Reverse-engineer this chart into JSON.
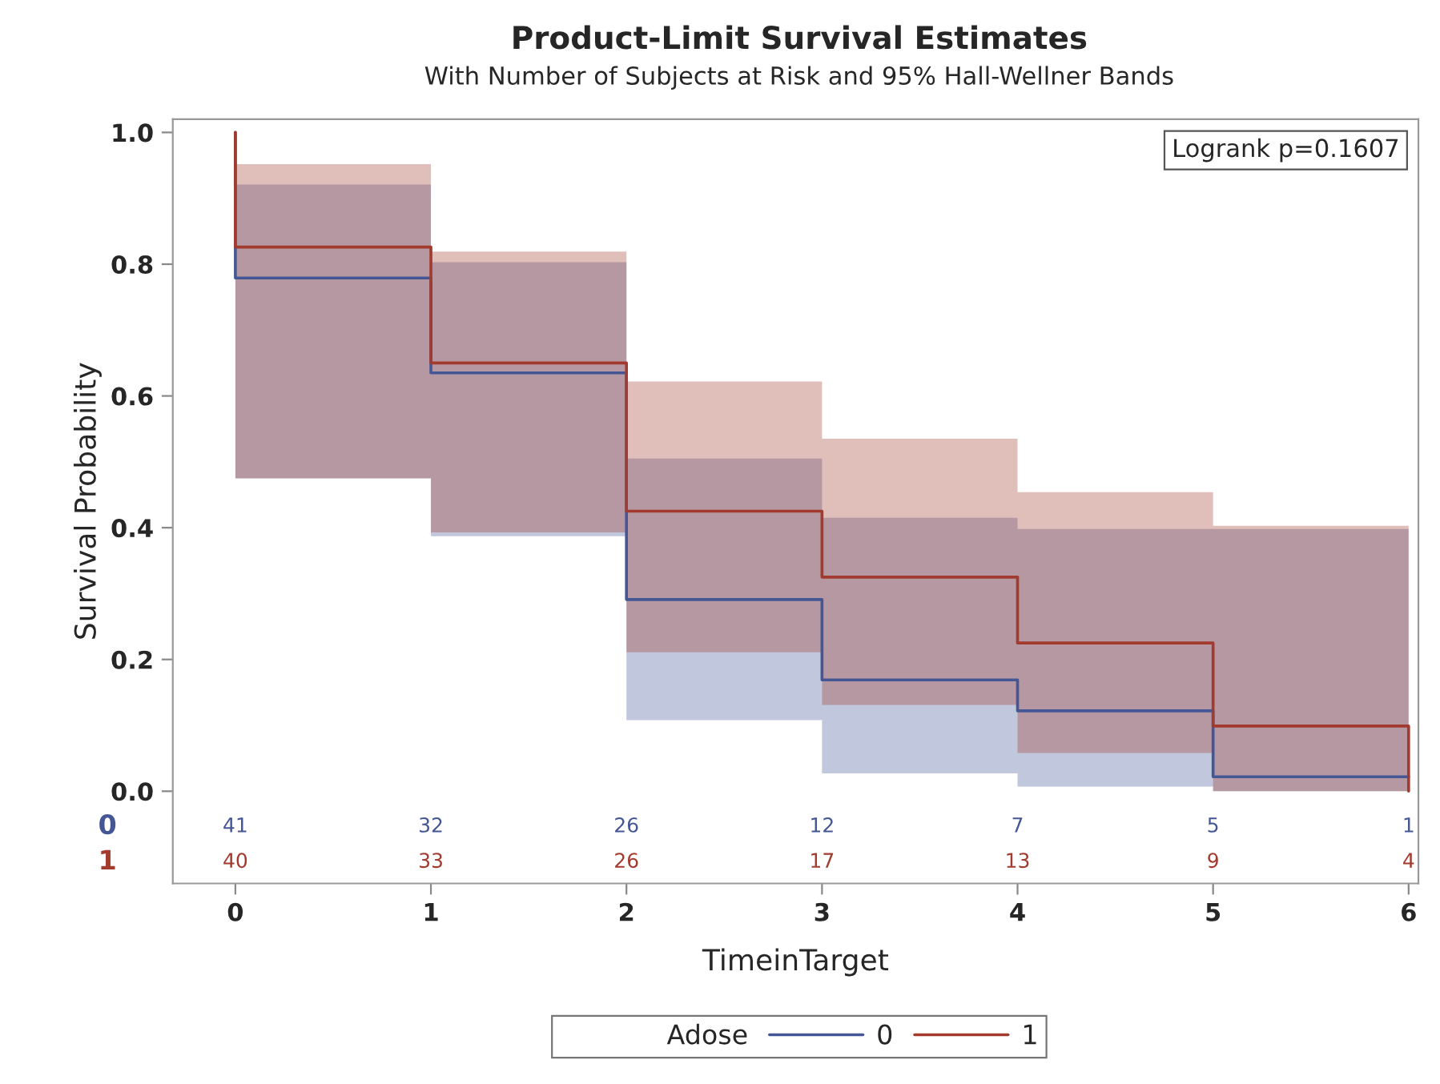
{
  "chart_data": {
    "type": "step",
    "title": "Product-Limit Survival Estimates",
    "subtitle": "With Number of Subjects at Risk and 95% Hall-Wellner Bands",
    "xlabel": "TimeinTarget",
    "ylabel": "Survival Probability",
    "legend_title": "Adose",
    "series": [
      {
        "name": "0",
        "color": "#445694",
        "x": [
          0,
          0,
          1,
          2,
          3,
          4,
          5,
          6
        ],
        "values": [
          1.0,
          0.779,
          0.635,
          0.291,
          0.169,
          0.122,
          0.022,
          0.022
        ],
        "lower": [
          null,
          0.475,
          0.387,
          0.108,
          0.027,
          0.007,
          0.0,
          0.0
        ],
        "upper": [
          null,
          0.921,
          0.803,
          0.505,
          0.415,
          0.398,
          0.398,
          0.398
        ]
      },
      {
        "name": "1",
        "color": "#a23a2e",
        "x": [
          0,
          0,
          1,
          2,
          3,
          4,
          5,
          6,
          6
        ],
        "values": [
          1.0,
          0.826,
          0.65,
          0.425,
          0.325,
          0.225,
          0.099,
          0.099,
          0.0
        ],
        "lower": [
          null,
          0.475,
          0.393,
          0.211,
          0.131,
          0.058,
          0.0,
          0.0,
          null
        ],
        "upper": [
          null,
          0.952,
          0.819,
          0.622,
          0.535,
          0.454,
          0.403,
          0.403,
          null
        ]
      }
    ],
    "xlim": [
      -0.32,
      6.05
    ],
    "ylim": [
      -0.14,
      1.02
    ],
    "xticks": [
      0,
      1,
      2,
      3,
      4,
      5,
      6
    ],
    "yticks": [
      {
        "value": 0,
        "label": "0.0"
      },
      {
        "value": 0.2,
        "label": "0.2"
      },
      {
        "value": 0.4,
        "label": "0.4"
      },
      {
        "value": 0.6,
        "label": "0.6"
      },
      {
        "value": 0.8,
        "label": "0.8"
      },
      {
        "value": 1,
        "label": "1.0"
      }
    ],
    "annotations": [
      "Logrank p=0.1607",
      "0",
      "41",
      "32",
      "26",
      "12",
      "7",
      "5",
      "1",
      "1",
      "40",
      "33",
      "26",
      "17",
      "13",
      "9",
      "4"
    ],
    "legend": "bottom",
    "grid": false,
    "line_style": "solid",
    "marker": "none"
  }
}
